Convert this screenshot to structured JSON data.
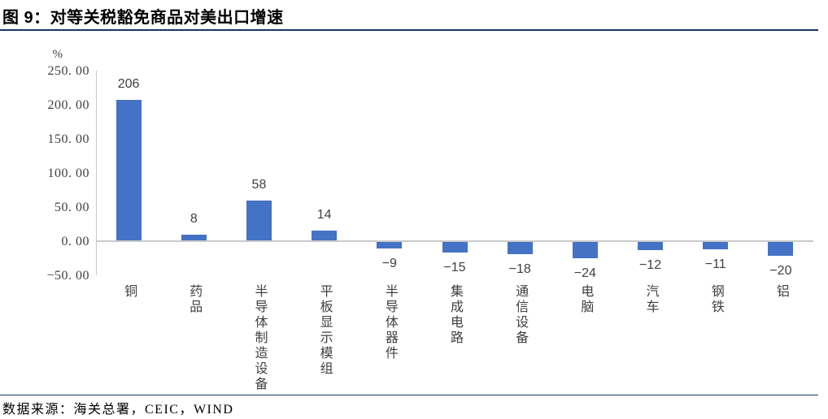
{
  "header": {
    "title": "图 9：对等关税豁免商品对美出口增速"
  },
  "chart": {
    "unit_label": "%"
  },
  "footer": {
    "source_text": "数据来源：海关总署，CEIC，WIND"
  },
  "colors": {
    "bar": "#4472C4",
    "axis_line": "#C9C9C9",
    "zero_line": "#C9C9C9",
    "rule": "#17375E",
    "tick_text": "#404040"
  },
  "chart_data": {
    "type": "bar",
    "title": "图 9：对等关税豁免商品对美出口增速",
    "xlabel": "",
    "ylabel": "%",
    "categories": [
      "铜",
      "药品",
      "半导体制造设备",
      "平板显示模组",
      "半导体器件",
      "集成电路",
      "通信设备",
      "电脑",
      "汽车",
      "钢铁",
      "铝"
    ],
    "values": [
      206,
      8,
      58,
      14,
      -9,
      -15,
      -18,
      -24,
      -12,
      -11,
      -20
    ],
    "value_labels": [
      "206",
      "8",
      "58",
      "14",
      "−9",
      "−15",
      "−18",
      "−24",
      "−12",
      "−11",
      "−20"
    ],
    "yticks": [
      250,
      200,
      150,
      100,
      50,
      0,
      -50
    ],
    "ytick_labels": [
      "250. 00",
      "200. 00",
      "150. 00",
      "100. 00",
      "50. 00",
      "0. 00",
      "−50. 00"
    ],
    "ylim": [
      -50,
      250
    ],
    "grid": false,
    "legend": false,
    "bar_color": "#4472C4",
    "source": "数据来源：海关总署，CEIC，WIND"
  }
}
